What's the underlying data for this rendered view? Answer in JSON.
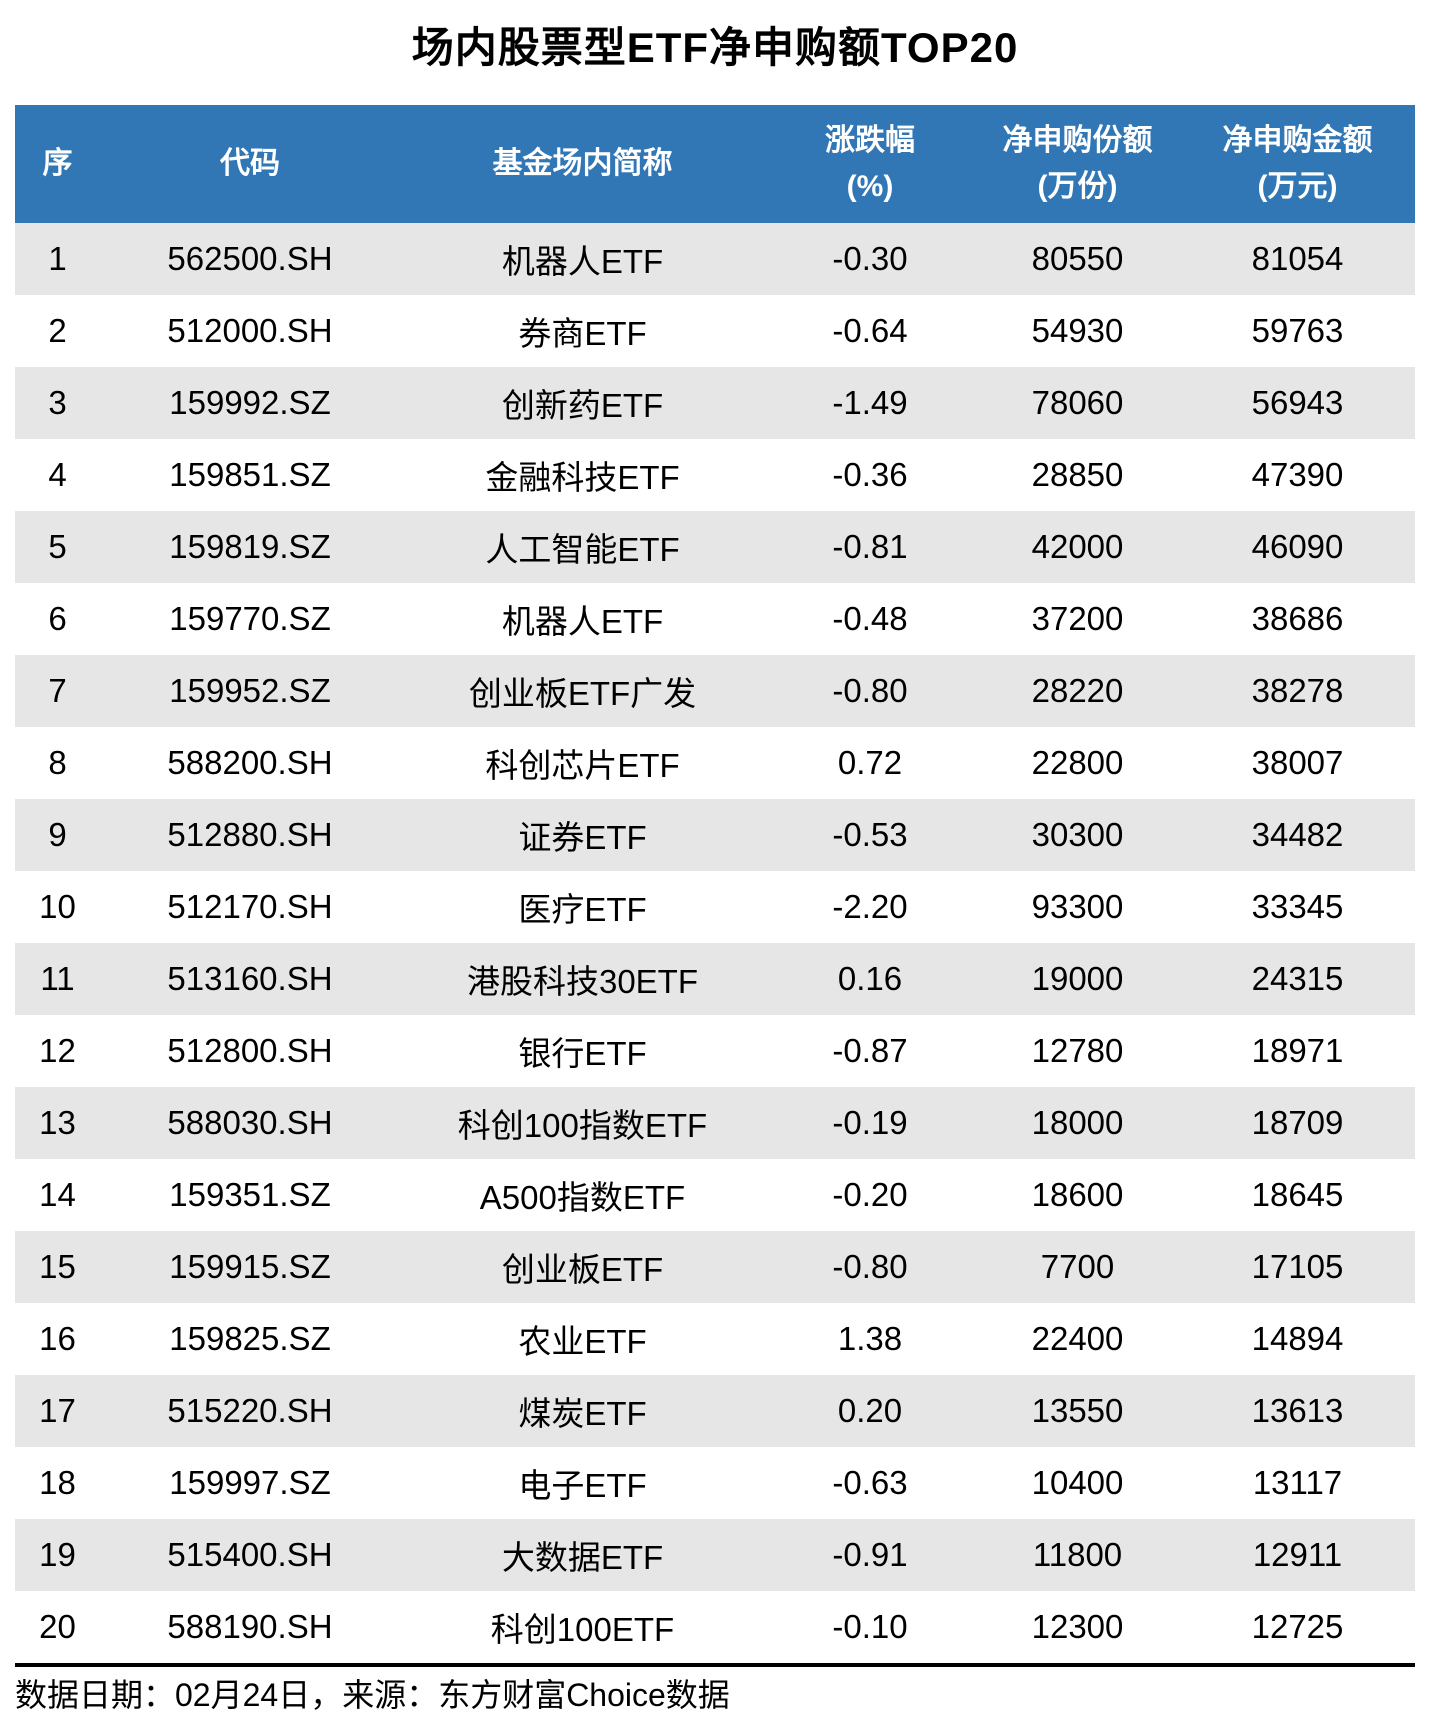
{
  "title": "场内股票型ETF净申购额TOP20",
  "header": {
    "rank": {
      "label": "序",
      "sub": ""
    },
    "code": {
      "label": "代码",
      "sub": ""
    },
    "name": {
      "label": "基金场内简称",
      "sub": ""
    },
    "change": {
      "label": "涨跌幅",
      "sub": "(%)"
    },
    "shares": {
      "label": "净申购份额",
      "sub": "(万份)"
    },
    "amount": {
      "label": "净申购金额",
      "sub": "(万元)"
    }
  },
  "footer": {
    "note": "数据日期：02月24日，来源：东方财富Choice数据"
  },
  "colors": {
    "header_bg": "#3176b5",
    "header_text": "#ffffff",
    "stripe": "#e6e6e6",
    "rule": "#000000"
  },
  "chart_data": {
    "type": "table",
    "title": "场内股票型ETF净申购额TOP20",
    "columns": [
      "序",
      "代码",
      "基金场内简称",
      "涨跌幅(%)",
      "净申购份额(万份)",
      "净申购金额(万元)"
    ],
    "rows": [
      [
        "1",
        "562500.SH",
        "机器人ETF",
        "-0.30",
        "80550",
        "81054"
      ],
      [
        "2",
        "512000.SH",
        "券商ETF",
        "-0.64",
        "54930",
        "59763"
      ],
      [
        "3",
        "159992.SZ",
        "创新药ETF",
        "-1.49",
        "78060",
        "56943"
      ],
      [
        "4",
        "159851.SZ",
        "金融科技ETF",
        "-0.36",
        "28850",
        "47390"
      ],
      [
        "5",
        "159819.SZ",
        "人工智能ETF",
        "-0.81",
        "42000",
        "46090"
      ],
      [
        "6",
        "159770.SZ",
        "机器人ETF",
        "-0.48",
        "37200",
        "38686"
      ],
      [
        "7",
        "159952.SZ",
        "创业板ETF广发",
        "-0.80",
        "28220",
        "38278"
      ],
      [
        "8",
        "588200.SH",
        "科创芯片ETF",
        "0.72",
        "22800",
        "38007"
      ],
      [
        "9",
        "512880.SH",
        "证券ETF",
        "-0.53",
        "30300",
        "34482"
      ],
      [
        "10",
        "512170.SH",
        "医疗ETF",
        "-2.20",
        "93300",
        "33345"
      ],
      [
        "11",
        "513160.SH",
        "港股科技30ETF",
        "0.16",
        "19000",
        "24315"
      ],
      [
        "12",
        "512800.SH",
        "银行ETF",
        "-0.87",
        "12780",
        "18971"
      ],
      [
        "13",
        "588030.SH",
        "科创100指数ETF",
        "-0.19",
        "18000",
        "18709"
      ],
      [
        "14",
        "159351.SZ",
        "A500指数ETF",
        "-0.20",
        "18600",
        "18645"
      ],
      [
        "15",
        "159915.SZ",
        "创业板ETF",
        "-0.80",
        "7700",
        "17105"
      ],
      [
        "16",
        "159825.SZ",
        "农业ETF",
        "1.38",
        "22400",
        "14894"
      ],
      [
        "17",
        "515220.SH",
        "煤炭ETF",
        "0.20",
        "13550",
        "13613"
      ],
      [
        "18",
        "159997.SZ",
        "电子ETF",
        "-0.63",
        "10400",
        "13117"
      ],
      [
        "19",
        "515400.SH",
        "大数据ETF",
        "-0.91",
        "11800",
        "12911"
      ],
      [
        "20",
        "588190.SH",
        "科创100ETF",
        "-0.10",
        "12300",
        "12725"
      ]
    ],
    "source_note": "数据日期：02月24日，来源：东方财富Choice数据",
    "layout": {
      "grid": false,
      "striped_rows": true,
      "header_position": "top"
    }
  }
}
